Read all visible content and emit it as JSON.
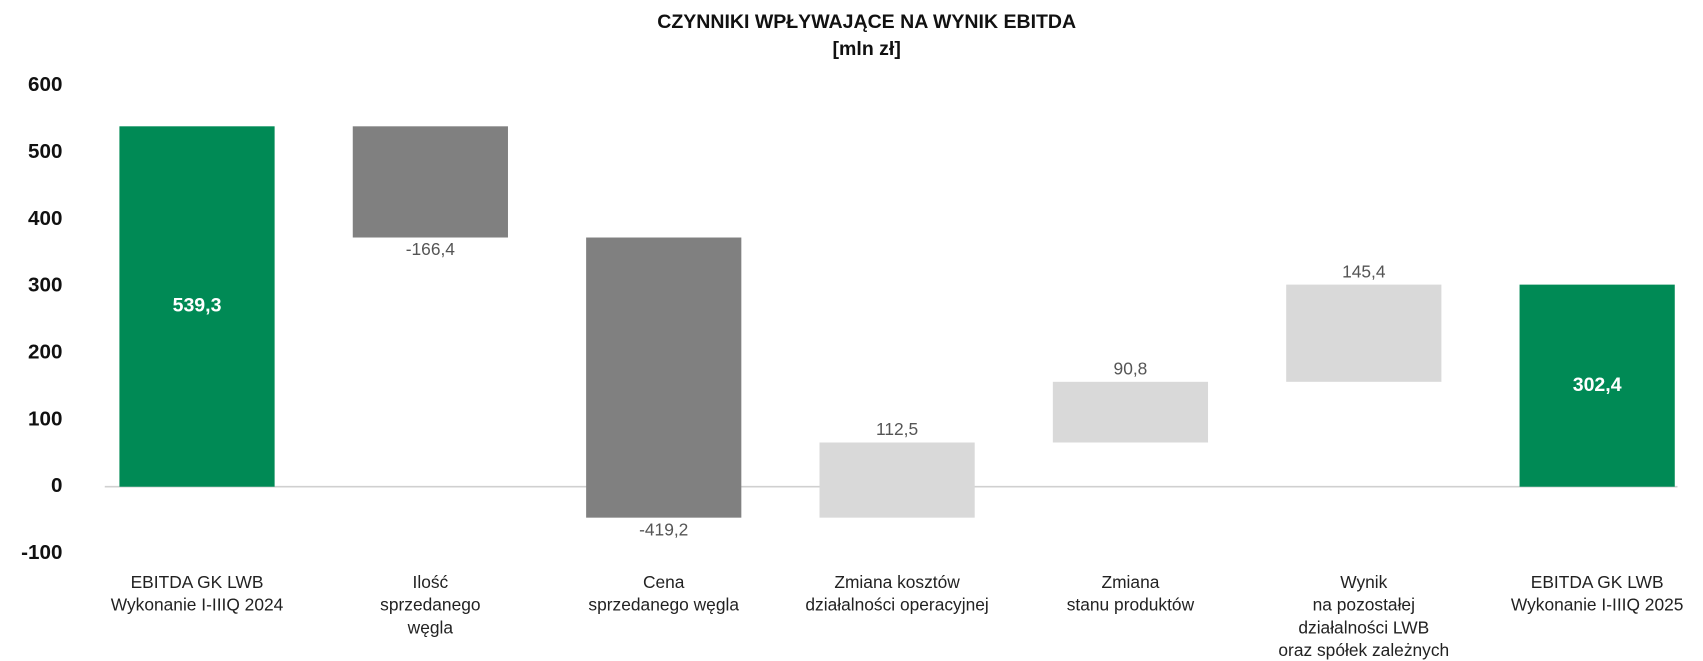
{
  "chart_data": {
    "type": "waterfall",
    "title": "CZYNNIKI WPŁYWAJĄCE NA WYNIK EBITDA",
    "subtitle": "[mln zł]",
    "categories": [
      "EBITDA GK LWB\nWykonanie I-IIIQ 2024",
      "Ilość\nsprzedanego\nwęgla",
      "Cena\nsprzedanego węgla",
      "Zmiana kosztów\ndziałalności operacyjnej",
      "Zmiana\nstanu produktów",
      "Wynik\nna pozostałej\ndziałalności LWB\noraz spółek zależnych",
      "EBITDA GK LWB\nWykonanie I-IIIQ 2025"
    ],
    "values": [
      539.3,
      -166.4,
      -419.2,
      112.5,
      90.8,
      145.4,
      302.4
    ],
    "value_labels": [
      "539,3",
      "-166,4",
      "-419,2",
      "112,5",
      "90,8",
      "145,4",
      "302,4"
    ],
    "measures": [
      "total",
      "relative",
      "relative",
      "relative",
      "relative",
      "relative",
      "total"
    ],
    "colors": {
      "total": "#008a55",
      "decrease": "#808080",
      "increase": "#d9d9d9"
    },
    "ylim": [
      -100,
      600
    ],
    "yticks": [
      -100,
      0,
      100,
      200,
      300,
      400,
      500,
      600
    ]
  }
}
